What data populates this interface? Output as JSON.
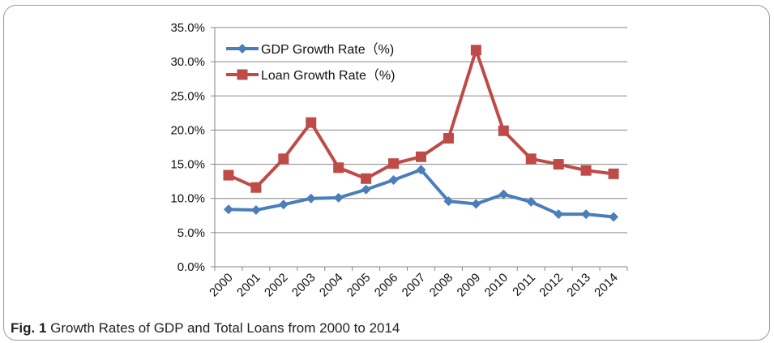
{
  "caption": {
    "label": "Fig. 1",
    "text": "Growth Rates of GDP and Total Loans from 2000 to 2014"
  },
  "chart_data": {
    "type": "line",
    "title": "",
    "xlabel": "",
    "ylabel": "",
    "categories": [
      "2000",
      "2001",
      "2002",
      "2003",
      "2004",
      "2005",
      "2006",
      "2007",
      "2008",
      "2009",
      "2010",
      "2011",
      "2012",
      "2013",
      "2014"
    ],
    "ylim": [
      0,
      35
    ],
    "yticks": [
      0,
      5,
      10,
      15,
      20,
      25,
      30,
      35
    ],
    "ytick_labels": [
      "0.0%",
      "5.0%",
      "10.0%",
      "15.0%",
      "20.0%",
      "25.0%",
      "30.0%",
      "35.0%"
    ],
    "grid": true,
    "legend_position": "top-left",
    "series": [
      {
        "name": "GDP Growth Rate（%)",
        "color": "#4a7ebb",
        "marker": "diamond",
        "values": [
          8.4,
          8.3,
          9.1,
          10.0,
          10.1,
          11.3,
          12.7,
          14.2,
          9.6,
          9.2,
          10.6,
          9.5,
          7.7,
          7.7,
          7.3
        ]
      },
      {
        "name": "Loan Growth Rate（%)",
        "color": "#be4b48",
        "marker": "square",
        "values": [
          13.4,
          11.6,
          15.8,
          21.1,
          14.5,
          12.9,
          15.1,
          16.1,
          18.8,
          31.7,
          19.9,
          15.8,
          15.0,
          14.1,
          13.6
        ]
      }
    ]
  }
}
